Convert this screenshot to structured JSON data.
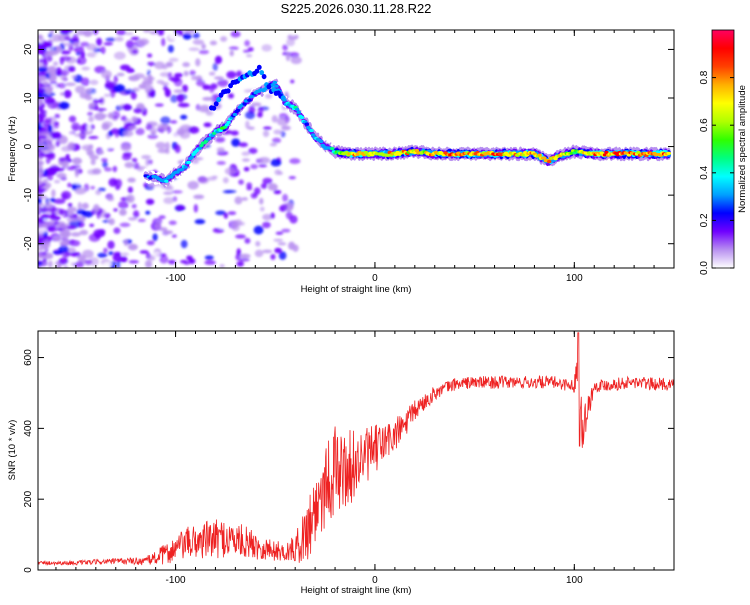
{
  "chart_data": [
    {
      "type": "heatmap",
      "title": "S225.2026.030.11.28.R22",
      "xlabel": "Height of straight line (km)",
      "ylabel": "Frequency (Hz)",
      "xlim": [
        -169,
        150
      ],
      "ylim": [
        -25,
        24
      ],
      "xticks": [
        -100,
        0,
        100
      ],
      "yticks": [
        -20,
        -10,
        0,
        10,
        20
      ],
      "colorbar": {
        "label": "Normalized spectral amplitude",
        "range": [
          0,
          1
        ],
        "ticks": [
          "0.0",
          "0.2",
          "0.4",
          "0.6",
          "0.8"
        ],
        "colors": [
          "#ffffff",
          "#b890f0",
          "#7000ff",
          "#0000ff",
          "#00a0ff",
          "#00ffff",
          "#00ff80",
          "#30ff00",
          "#b0ff00",
          "#ffff00",
          "#ffb000",
          "#ff4000",
          "#ff0000",
          "#ff0060"
        ]
      },
      "ridge": {
        "x": [
          -115,
          -105,
          -95,
          -90,
          -85,
          -80,
          -75,
          -70,
          -65,
          -60,
          -55,
          -50,
          -45,
          -40,
          -35,
          -30,
          -25,
          -20,
          -15,
          -10,
          0,
          10,
          20,
          30,
          40,
          50,
          60,
          70,
          80,
          87,
          92,
          100,
          110,
          120,
          130,
          140,
          148
        ],
        "y": [
          -6,
          -7,
          -4,
          -1,
          1,
          3,
          4,
          7,
          9,
          11,
          12,
          13,
          9,
          8,
          5,
          2,
          0,
          -1,
          -1.5,
          -1.5,
          -1.5,
          -1.5,
          -1,
          -1.5,
          -1.5,
          -1.5,
          -1.5,
          -1.5,
          -1.5,
          -3,
          -2,
          -1,
          -1.5,
          -1.5,
          -1.5,
          -1.5,
          -1.5
        ],
        "amplitude": [
          0.25,
          0.35,
          0.35,
          0.4,
          0.45,
          0.4,
          0.5,
          0.3,
          0.3,
          0.3,
          0.3,
          0.3,
          0.35,
          0.4,
          0.35,
          0.35,
          0.3,
          0.45,
          0.7,
          0.8,
          0.75,
          0.8,
          0.7,
          0.75,
          0.85,
          0.8,
          0.85,
          0.75,
          0.8,
          0.8,
          0.7,
          0.6,
          0.85,
          0.85,
          0.85,
          0.85,
          0.85
        ]
      }
    },
    {
      "type": "line",
      "xlabel": "Height of straight line (km)",
      "ylabel": "SNR (10 * v/v)",
      "xlim": [
        -169,
        150
      ],
      "ylim": [
        0,
        675
      ],
      "xticks": [
        -100,
        0,
        100
      ],
      "yticks": [
        0,
        200,
        400,
        600
      ],
      "color": "#ee2222",
      "x": [
        -169,
        -150,
        -130,
        -115,
        -105,
        -95,
        -85,
        -75,
        -65,
        -55,
        -45,
        -40,
        -35,
        -30,
        -25,
        -20,
        -15,
        -10,
        -5,
        0,
        5,
        10,
        15,
        20,
        30,
        40,
        50,
        60,
        70,
        80,
        90,
        95,
        100,
        102,
        104,
        110,
        120,
        130,
        140,
        150
      ],
      "y": [
        20,
        20,
        25,
        25,
        45,
        75,
        85,
        90,
        80,
        60,
        50,
        60,
        100,
        170,
        250,
        280,
        280,
        300,
        320,
        340,
        360,
        380,
        410,
        450,
        500,
        525,
        530,
        530,
        530,
        530,
        530,
        525,
        520,
        600,
        400,
        520,
        525,
        530,
        525,
        525
      ],
      "noise": [
        5,
        6,
        8,
        12,
        30,
        45,
        55,
        55,
        45,
        35,
        25,
        40,
        80,
        120,
        130,
        130,
        110,
        100,
        80,
        70,
        60,
        50,
        40,
        30,
        20,
        18,
        18,
        18,
        18,
        18,
        18,
        18,
        18,
        70,
        60,
        18,
        18,
        18,
        18,
        18
      ]
    }
  ]
}
